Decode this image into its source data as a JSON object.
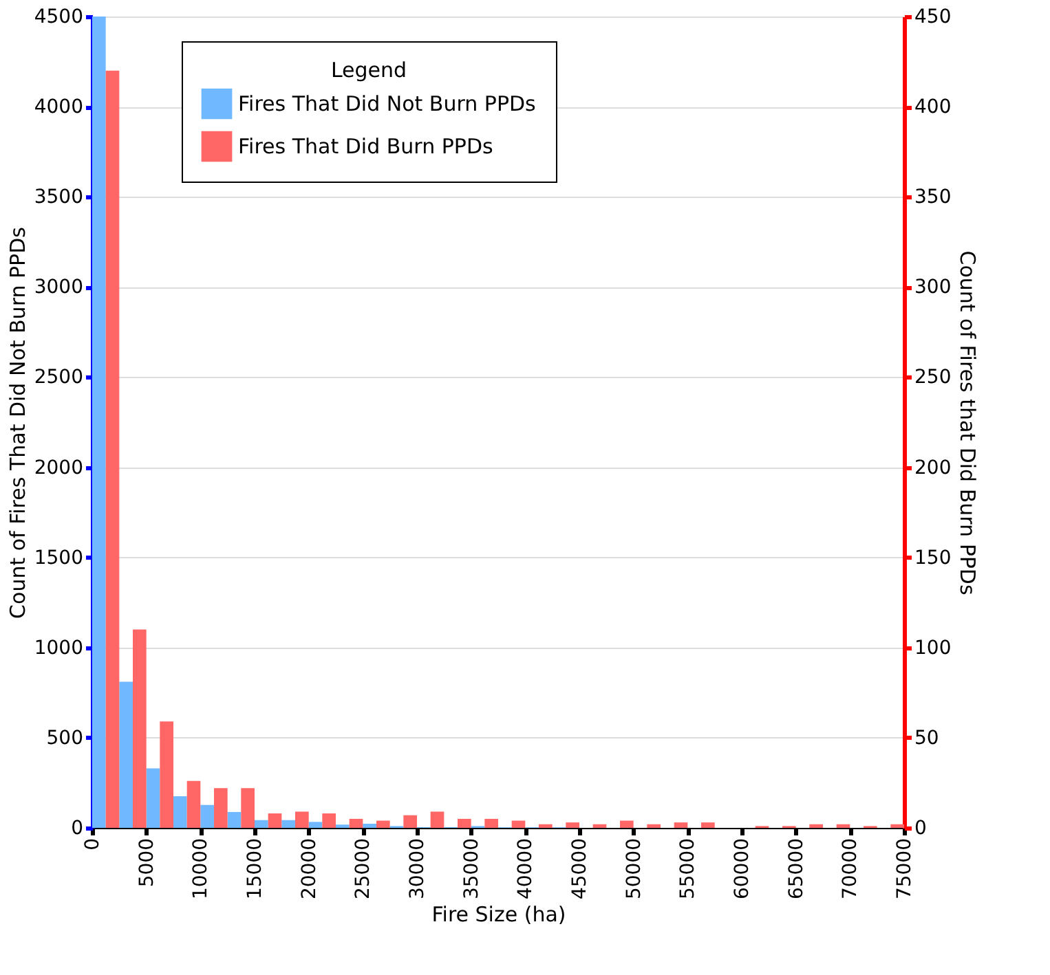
{
  "chart_data": {
    "type": "histogram",
    "xlabel": "Fire Size (ha)",
    "ylabel": "Count of Fires That Did Not Burn PPDs",
    "y2label": "Count of Fires that Did Burn PPDs",
    "legend_title": "Legend",
    "bins": [
      0,
      2500,
      5000,
      7500,
      10000,
      12500,
      15000,
      17500,
      20000,
      22500,
      25000,
      27500,
      30000,
      32500,
      35000,
      37500,
      40000,
      42500,
      45000,
      47500,
      50000,
      52500,
      55000,
      57500,
      60000,
      62500,
      65000,
      67500,
      70000,
      72500,
      75000
    ],
    "series": [
      {
        "name": "Fires That Did Not Burn PPDs",
        "color": "#70b8ff",
        "values": [
          4500,
          810,
          330,
          175,
          127,
          88,
          43,
          43,
          33,
          18,
          23,
          10,
          4,
          4,
          10,
          3,
          3,
          3,
          0,
          0,
          0,
          0,
          0,
          0,
          0,
          0,
          0,
          0,
          0,
          0
        ]
      },
      {
        "name": "Fires That Did Burn PPDs",
        "color": "#ff6666",
        "axis": "y2",
        "values": [
          420,
          110,
          59,
          26,
          22,
          22,
          8,
          9,
          8,
          5,
          4,
          7,
          9,
          5,
          5,
          4,
          2,
          3,
          2,
          4,
          2,
          3,
          3,
          0,
          1,
          1,
          2,
          2,
          1,
          2
        ]
      }
    ],
    "xlim": [
      0,
      75000
    ],
    "xticks": [
      0,
      5000,
      10000,
      15000,
      20000,
      25000,
      30000,
      35000,
      40000,
      45000,
      50000,
      55000,
      60000,
      65000,
      70000,
      75000
    ],
    "ylim": [
      0,
      4500
    ],
    "yticks": [
      0,
      500,
      1000,
      1500,
      2000,
      2500,
      3000,
      3500,
      4000,
      4500
    ],
    "y2lim": [
      0,
      450
    ],
    "y2ticks": [
      0,
      50,
      100,
      150,
      200,
      250,
      300,
      350,
      400,
      450
    ],
    "grid": "y",
    "legend": "top left"
  }
}
